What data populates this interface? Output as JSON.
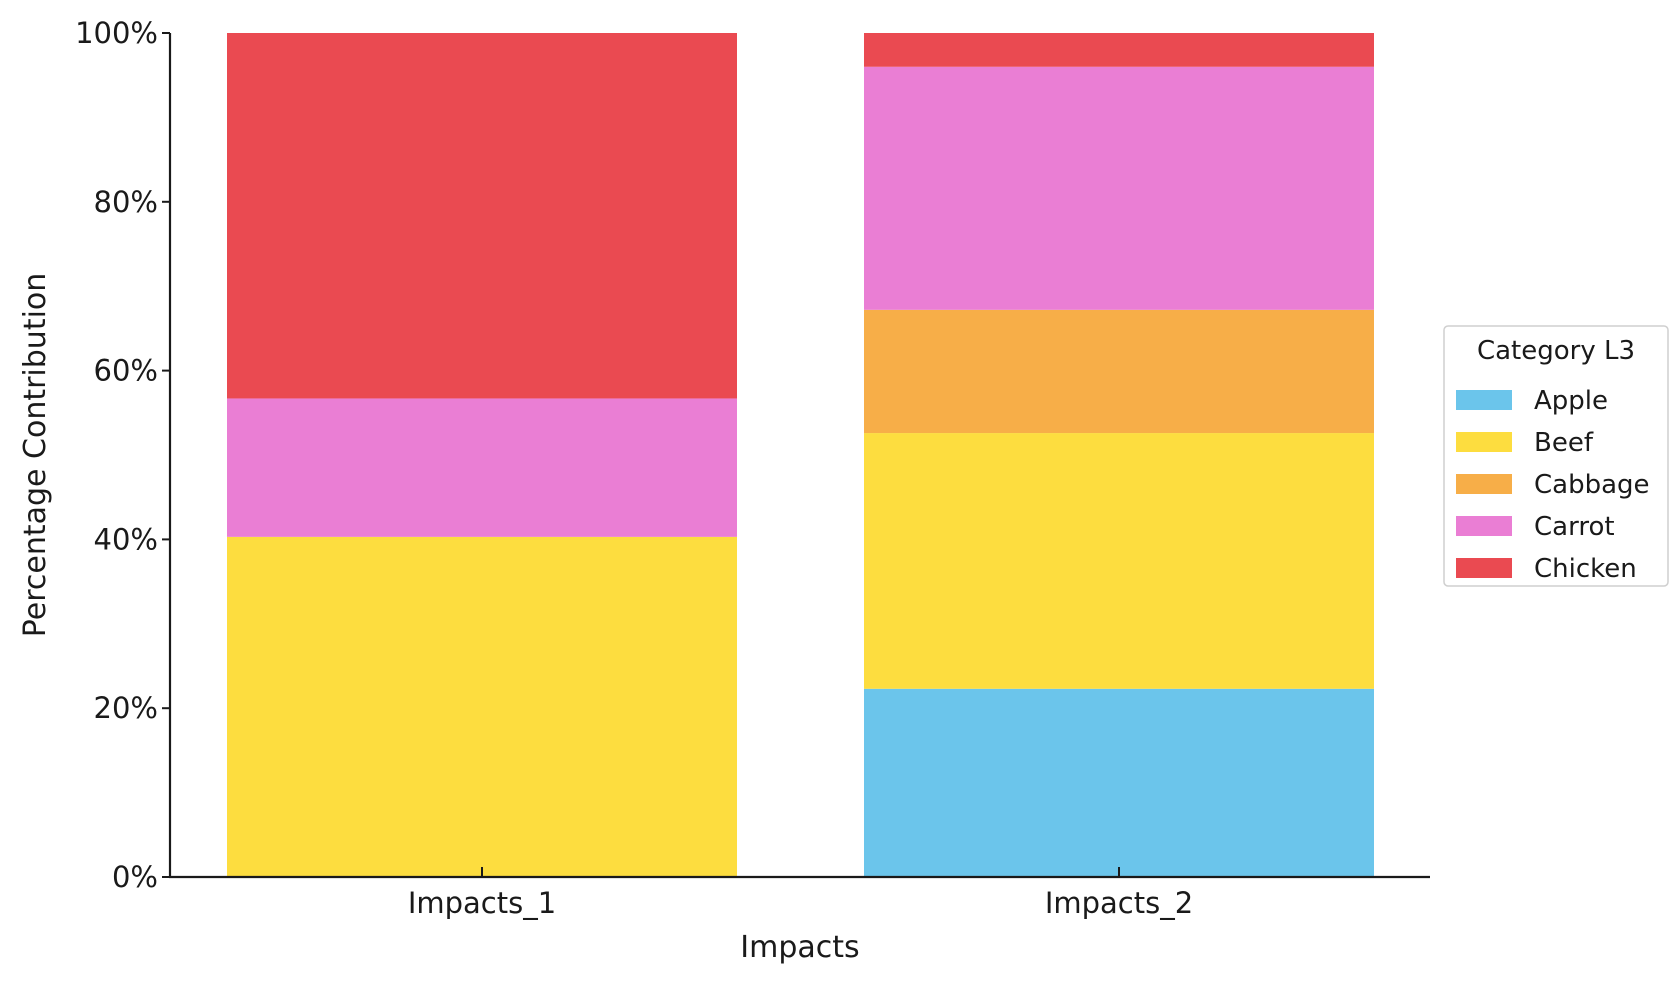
{
  "chart_data": {
    "type": "bar",
    "stacked": true,
    "normalized": true,
    "title": "",
    "xlabel": "Impacts",
    "ylabel": "Percentage Contribution",
    "ylim": [
      0,
      100
    ],
    "y_unit": "%",
    "yticks": [
      0,
      20,
      40,
      60,
      80,
      100
    ],
    "ytick_labels": [
      "0%",
      "20%",
      "40%",
      "60%",
      "80%",
      "100%"
    ],
    "grid": false,
    "legend": {
      "title": "Category L3",
      "placement": "right"
    },
    "categories": [
      "Impacts_1",
      "Impacts_2"
    ],
    "series": [
      {
        "name": "Apple",
        "color": "#6BC5EB",
        "values": [
          0,
          22.3
        ]
      },
      {
        "name": "Beef",
        "color": "#FDDD3F",
        "values": [
          40.3,
          30.3
        ]
      },
      {
        "name": "Cabbage",
        "color": "#F7AE48",
        "values": [
          0,
          14.6
        ]
      },
      {
        "name": "Carrot",
        "color": "#EA7ED4",
        "values": [
          16.4,
          28.8
        ]
      },
      {
        "name": "Chicken",
        "color": "#EA4A51",
        "values": [
          43.3,
          4.0
        ]
      }
    ]
  }
}
